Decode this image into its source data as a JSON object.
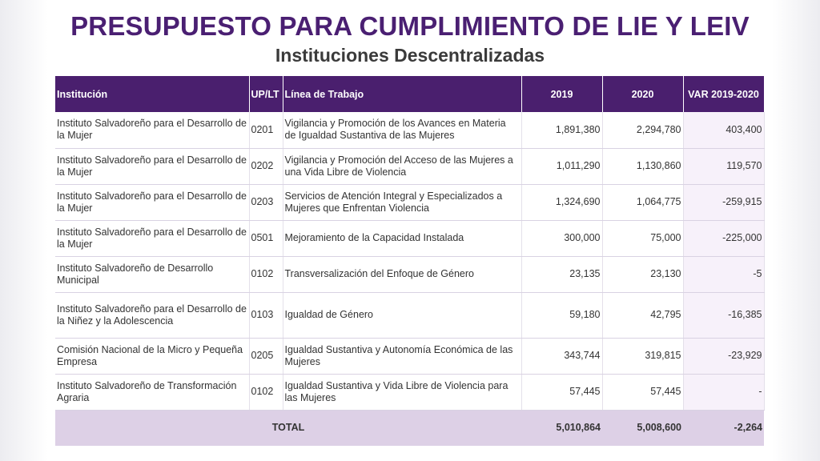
{
  "title": "PRESUPUESTO PARA CUMPLIMIENTO DE LIE Y LEIV",
  "subtitle": "Instituciones Descentralizadas",
  "table": {
    "headers": [
      "Institución",
      "UP/LT",
      "Línea de Trabajo",
      "2019",
      "2020",
      "VAR 2019-2020"
    ],
    "rows": [
      {
        "institucion": "Instituto Salvadoreño para el Desarrollo de la Mujer",
        "up": "0201",
        "linea": "Vigilancia y Promoción de los Avances en Materia de Igualdad Sustantiva de las Mujeres",
        "y2019": "1,891,380",
        "y2020": "2,294,780",
        "var": "403,400"
      },
      {
        "institucion": "Instituto Salvadoreño para el Desarrollo de la Mujer",
        "up": "0202",
        "linea": "Vigilancia y Promoción del Acceso de las Mujeres a una Vida Libre de Violencia",
        "y2019": "1,011,290",
        "y2020": "1,130,860",
        "var": "119,570"
      },
      {
        "institucion": "Instituto Salvadoreño para el Desarrollo de la Mujer",
        "up": "0203",
        "linea": "Servicios de Atención Integral y Especializados a Mujeres que Enfrentan Violencia",
        "y2019": "1,324,690",
        "y2020": "1,064,775",
        "var": "-259,915"
      },
      {
        "institucion": "Instituto Salvadoreño para el Desarrollo de la Mujer",
        "up": "0501",
        "linea": "Mejoramiento de la Capacidad Instalada",
        "y2019": "300,000",
        "y2020": "75,000",
        "var": "-225,000"
      },
      {
        "institucion": "Instituto Salvadoreño de Desarrollo Municipal",
        "up": "0102",
        "linea": "Transversalización del Enfoque de Género",
        "y2019": "23,135",
        "y2020": "23,130",
        "var": "-5"
      },
      {
        "institucion": "Instituto Salvadoreño para el Desarrollo de la Niñez y la Adolescencia",
        "up": "0103",
        "linea": "Igualdad de Género",
        "y2019": "59,180",
        "y2020": "42,795",
        "var": "-16,385"
      },
      {
        "institucion": "Comisión Nacional de la Micro y Pequeña Empresa",
        "up": "0205",
        "linea": "Igualdad Sustantiva y Autonomía Económica de las Mujeres",
        "y2019": "343,744",
        "y2020": "319,815",
        "var": "-23,929"
      },
      {
        "institucion": "Instituto Salvadoreño de Transformación Agraria",
        "up": "0102",
        "linea": "Igualdad Sustantiva y Vida Libre de Violencia para las Mujeres",
        "y2019": "57,445",
        "y2020": "57,445",
        "var": "-"
      }
    ],
    "total": {
      "label": "TOTAL",
      "y2019": "5,010,864",
      "y2020": "5,008,600",
      "var": "-2,264"
    }
  },
  "colors": {
    "header_bg": "#4a1f6e",
    "title": "#4a1f72",
    "total_bg": "#ddd0e6",
    "var_col_bg": "#f7f1fa"
  }
}
